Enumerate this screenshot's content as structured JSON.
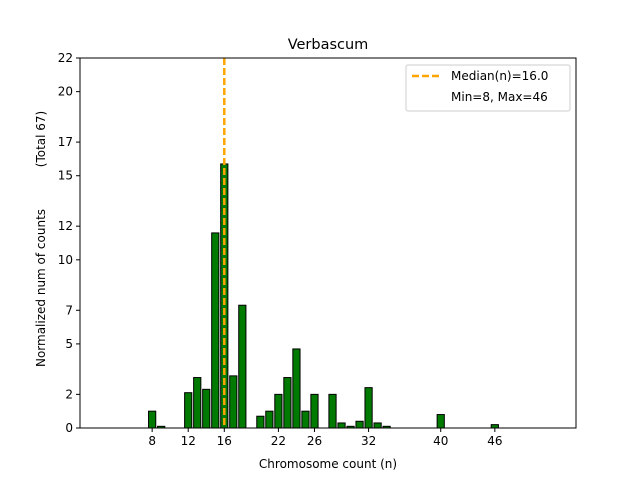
{
  "chart_data": {
    "type": "bar",
    "title": "Verbascum",
    "xlabel": "Chromosome count (n)",
    "ylabel": "Normalized num of counts",
    "ylabel_total": "(Total 67)",
    "xlim": [
      0,
      55
    ],
    "ylim": [
      0,
      22
    ],
    "xticks": [
      8,
      12,
      16,
      22,
      26,
      32,
      40,
      46
    ],
    "yticks": [
      0,
      2,
      5,
      7,
      10,
      12,
      15,
      17,
      20,
      22
    ],
    "bar_color": "#007a00",
    "bar_edge_color": "#000000",
    "median_color": "#ffa500",
    "median": 16.0,
    "legend": {
      "position": "top-right",
      "median_label": "Median(n)=16.0",
      "range_label": "Min=8, Max=46"
    },
    "bars": [
      {
        "x": 8,
        "value": 1.0
      },
      {
        "x": 9,
        "value": 0.1
      },
      {
        "x": 12,
        "value": 2.1
      },
      {
        "x": 13,
        "value": 3.0
      },
      {
        "x": 14,
        "value": 2.3
      },
      {
        "x": 15,
        "value": 11.6
      },
      {
        "x": 16,
        "value": 15.7
      },
      {
        "x": 17,
        "value": 3.1
      },
      {
        "x": 18,
        "value": 7.3
      },
      {
        "x": 20,
        "value": 0.7
      },
      {
        "x": 21,
        "value": 1.0
      },
      {
        "x": 22,
        "value": 2.0
      },
      {
        "x": 23,
        "value": 3.0
      },
      {
        "x": 24,
        "value": 4.7
      },
      {
        "x": 25,
        "value": 1.0
      },
      {
        "x": 26,
        "value": 2.0
      },
      {
        "x": 28,
        "value": 2.0
      },
      {
        "x": 29,
        "value": 0.3
      },
      {
        "x": 30,
        "value": 0.1
      },
      {
        "x": 31,
        "value": 0.4
      },
      {
        "x": 32,
        "value": 2.4
      },
      {
        "x": 33,
        "value": 0.3
      },
      {
        "x": 34,
        "value": 0.1
      },
      {
        "x": 40,
        "value": 0.8
      },
      {
        "x": 46,
        "value": 0.2
      }
    ]
  }
}
